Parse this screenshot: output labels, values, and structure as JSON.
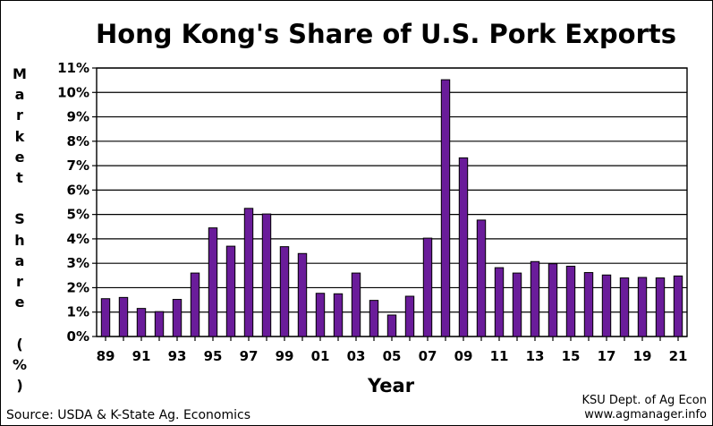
{
  "chart_data": {
    "type": "bar",
    "title": "Hong Kong's Share of U.S. Pork Exports",
    "xlabel": "Year",
    "ylabel": "Market Share (%)",
    "ylim": [
      0,
      11
    ],
    "grid": true,
    "bar_color": "#6a1c9a",
    "categories": [
      "89",
      "90",
      "91",
      "92",
      "93",
      "94",
      "95",
      "96",
      "97",
      "98",
      "99",
      "00",
      "01",
      "02",
      "03",
      "04",
      "05",
      "06",
      "07",
      "08",
      "09",
      "10",
      "11",
      "12",
      "13",
      "14",
      "15",
      "16",
      "17",
      "18",
      "19",
      "20",
      "21"
    ],
    "x_tick_labels": [
      "89",
      "91",
      "93",
      "95",
      "97",
      "99",
      "01",
      "03",
      "05",
      "07",
      "09",
      "11",
      "13",
      "15",
      "17",
      "19",
      "21"
    ],
    "y_tick_labels": [
      "0%",
      "1%",
      "2%",
      "3%",
      "4%",
      "5%",
      "6%",
      "7%",
      "8%",
      "9%",
      "10%",
      "11%"
    ],
    "values": [
      1.55,
      1.6,
      1.15,
      1.02,
      1.52,
      2.6,
      4.45,
      3.7,
      5.25,
      5.02,
      3.68,
      3.4,
      1.77,
      1.75,
      2.6,
      1.48,
      0.88,
      1.65,
      4.03,
      10.52,
      7.32,
      4.77,
      2.82,
      2.6,
      3.07,
      2.98,
      2.88,
      2.62,
      2.52,
      2.4,
      2.42,
      2.4,
      2.48
    ]
  },
  "ylabel_chars": [
    "M",
    "a",
    "r",
    "k",
    "e",
    "t",
    " ",
    "S",
    "h",
    "a",
    "r",
    "e",
    " ",
    "(",
    "%",
    ")"
  ],
  "source": "Source:  USDA & K-State Ag. Economics",
  "credit_line1": "KSU Dept. of Ag Econ",
  "credit_line2": "www.agmanager.info"
}
